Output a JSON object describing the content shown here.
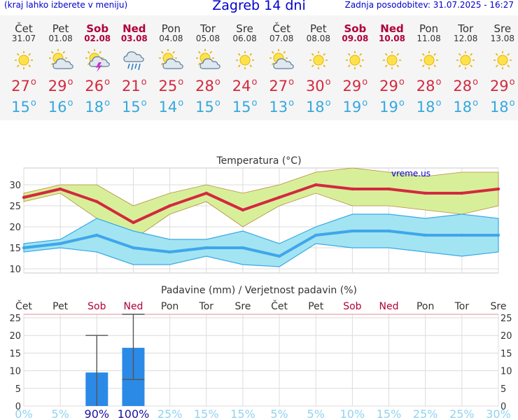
{
  "header": {
    "note": "(kraj lahko izberete v meniju)",
    "title": "Zagreb 14 dni",
    "updated": "Zadnja posodobitev: 31.07.2025 - 16:27"
  },
  "colors": {
    "weekend": "#b0003a",
    "max_temp": "#d22a3f",
    "min_temp": "#35a8de",
    "max_band": "#d8ef9a",
    "min_band": "#a3e4f2",
    "precip_bar": "#2b8ae6",
    "title": "#0000cc"
  },
  "forecast": [
    {
      "day": "Čet",
      "date": "31.07",
      "weekend": false,
      "icon": "sun-icon",
      "tmax": "27",
      "tmin": "15"
    },
    {
      "day": "Pet",
      "date": "01.08",
      "weekend": false,
      "icon": "sun-cloud-icon",
      "tmax": "29",
      "tmin": "16"
    },
    {
      "day": "Sob",
      "date": "02.08",
      "weekend": true,
      "icon": "sun-storm-icon",
      "tmax": "26",
      "tmin": "18"
    },
    {
      "day": "Ned",
      "date": "03.08",
      "weekend": true,
      "icon": "rain-cloud-icon",
      "tmax": "21",
      "tmin": "15"
    },
    {
      "day": "Pon",
      "date": "04.08",
      "weekend": false,
      "icon": "sun-cloud-icon",
      "tmax": "25",
      "tmin": "14"
    },
    {
      "day": "Tor",
      "date": "05.08",
      "weekend": false,
      "icon": "sun-cloud-icon",
      "tmax": "28",
      "tmin": "15"
    },
    {
      "day": "Sre",
      "date": "06.08",
      "weekend": false,
      "icon": "sun-icon",
      "tmax": "24",
      "tmin": "15"
    },
    {
      "day": "Čet",
      "date": "07.08",
      "weekend": false,
      "icon": "sun-cloud-icon",
      "tmax": "27",
      "tmin": "13"
    },
    {
      "day": "Pet",
      "date": "08.08",
      "weekend": false,
      "icon": "sun-icon",
      "tmax": "30",
      "tmin": "18"
    },
    {
      "day": "Sob",
      "date": "09.08",
      "weekend": true,
      "icon": "sun-icon",
      "tmax": "29",
      "tmin": "19"
    },
    {
      "day": "Ned",
      "date": "10.08",
      "weekend": true,
      "icon": "sun-icon",
      "tmax": "29",
      "tmin": "19"
    },
    {
      "day": "Pon",
      "date": "11.08",
      "weekend": false,
      "icon": "sun-icon",
      "tmax": "28",
      "tmin": "18"
    },
    {
      "day": "Tor",
      "date": "12.08",
      "weekend": false,
      "icon": "sun-icon",
      "tmax": "28",
      "tmin": "18"
    },
    {
      "day": "Sre",
      "date": "13.08",
      "weekend": false,
      "icon": "sun-icon",
      "tmax": "29",
      "tmin": "18"
    }
  ],
  "chart_data": [
    {
      "type": "line",
      "title": "Temperatura (°C)",
      "watermark": "vreme.us",
      "x": [
        "31.07",
        "01.08",
        "02.08",
        "03.08",
        "04.08",
        "05.08",
        "06.08",
        "07.08",
        "08.08",
        "09.08",
        "10.08",
        "11.08",
        "12.08",
        "13.08"
      ],
      "ylim": [
        9,
        34
      ],
      "yticks": [
        10,
        15,
        20,
        25,
        30
      ],
      "grid": true,
      "series": [
        {
          "values": [
            27,
            29,
            26,
            21,
            25,
            28,
            24,
            27,
            30,
            29,
            29,
            28,
            28,
            29
          ]
        },
        {
          "values": [
            15,
            16,
            18,
            15,
            14,
            15,
            15,
            13,
            18,
            19,
            19,
            18,
            18,
            18
          ]
        }
      ],
      "bands": [
        {
          "upper": [
            28,
            30,
            30,
            25,
            28,
            30,
            28,
            30,
            33,
            34,
            33,
            32,
            33,
            33
          ],
          "lower": [
            26,
            28,
            22,
            17,
            23,
            26,
            20,
            25,
            28,
            25,
            25,
            24,
            23,
            25
          ]
        },
        {
          "upper": [
            16,
            17,
            22,
            19,
            17,
            17,
            19,
            16,
            20,
            23,
            23,
            22,
            23,
            22
          ],
          "lower": [
            14,
            15,
            14,
            11,
            11,
            13,
            11,
            10.5,
            16,
            15,
            15,
            14,
            13,
            14
          ]
        }
      ]
    },
    {
      "type": "bar",
      "title": "Padavine (mm) / Verjetnost padavin (%)",
      "categories": [
        "Čet",
        "Pet",
        "Sob",
        "Ned",
        "Pon",
        "Tor",
        "Sre",
        "Čet",
        "Pet",
        "Sob",
        "Ned",
        "Pon",
        "Tor",
        "Sre"
      ],
      "weekend": [
        false,
        false,
        true,
        true,
        false,
        false,
        false,
        false,
        false,
        true,
        true,
        false,
        false,
        false
      ],
      "values": [
        0,
        0,
        9.5,
        16.5,
        0,
        0,
        0,
        0,
        0,
        0,
        0,
        0,
        0,
        0
      ],
      "error_high": [
        0,
        0,
        20,
        26,
        0,
        0,
        0,
        0,
        0,
        0,
        0,
        0,
        0,
        0
      ],
      "error_low": [
        0,
        0,
        0,
        7.5,
        0,
        0,
        0,
        0,
        0,
        0,
        0,
        0,
        0,
        0
      ],
      "probability": [
        "0%",
        "5%",
        "90%",
        "100%",
        "25%",
        "15%",
        "15%",
        "5%",
        "5%",
        "10%",
        "15%",
        "25%",
        "25%",
        "30%"
      ],
      "ylim": [
        0,
        26
      ],
      "yticks": [
        0,
        5,
        10,
        15,
        20,
        25
      ],
      "grid": true
    }
  ]
}
